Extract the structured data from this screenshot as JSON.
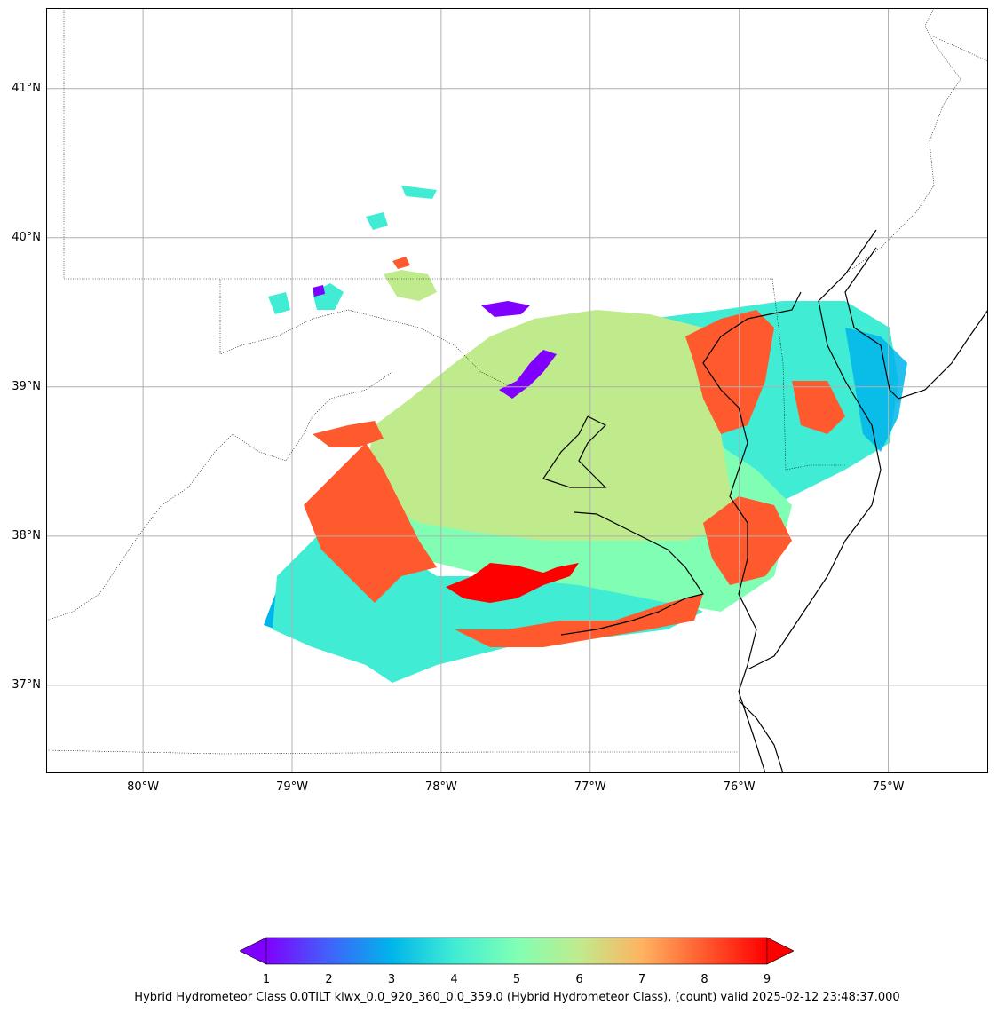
{
  "map": {
    "lon_range": [
      -80.65,
      -74.33
    ],
    "lat_range": [
      36.41,
      41.54
    ],
    "lat_ticks": [
      {
        "value": 41,
        "label": "41°N"
      },
      {
        "value": 40,
        "label": "40°N"
      },
      {
        "value": 39,
        "label": "39°N"
      },
      {
        "value": 38,
        "label": "38°N"
      },
      {
        "value": 37,
        "label": "37°N"
      }
    ],
    "lon_ticks": [
      {
        "value": -80,
        "label": "80°W"
      },
      {
        "value": -79,
        "label": "79°W"
      },
      {
        "value": -78,
        "label": "78°W"
      },
      {
        "value": -77,
        "label": "77°W"
      },
      {
        "value": -76,
        "label": "76°W"
      },
      {
        "value": -75,
        "label": "75°W"
      }
    ],
    "gridlines": true,
    "grid_color": "#b0b0b0",
    "coastline_color": "#000000",
    "state_border_style": "dotted"
  },
  "colorbar": {
    "ticks": [
      "1",
      "2",
      "3",
      "4",
      "5",
      "6",
      "7",
      "8",
      "9"
    ],
    "min": 1,
    "max": 9,
    "colormap": "rainbow",
    "extend": "both",
    "label": "Hybrid Hydrometeor Class 0.0TILT klwx_0.0_920_360_0.0_359.0 (Hybrid Hydrometeor Class), (count) valid 2025-02-12 23:48:37.000"
  },
  "class_colors": {
    "1": "#8000ff",
    "3": "#00b5eb",
    "4": "#40ecd4",
    "5": "#80ffb4",
    "6": "#c0eb8d",
    "8": "#ff5a2e",
    "9": "#ff0000"
  }
}
